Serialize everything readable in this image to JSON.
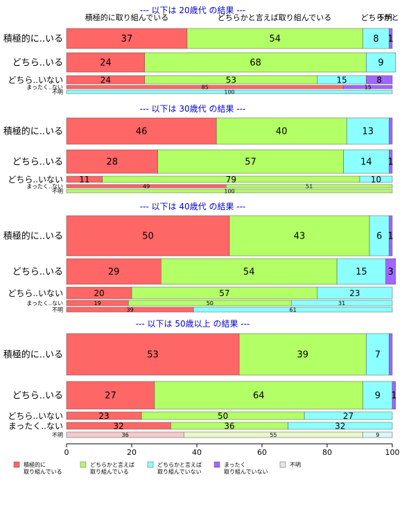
{
  "chart_data": {
    "type": "bar",
    "orientation": "horizontal-stacked-100",
    "xlim": [
      0,
      100
    ],
    "x_ticks": [
      0,
      20,
      40,
      60,
      80,
      100
    ],
    "categories": [
      "積極的に取り組んでいる",
      "どちらかと言えば取り組んでいる",
      "どちらかと言えば取り組んでいない",
      "まったく取り組んでいない",
      "不明"
    ],
    "colors": [
      "#ff6666",
      "#b3ff66",
      "#8cffff",
      "#a066ff",
      "#e6e6e6"
    ],
    "legend": {
      "placement": "bottom",
      "entries": [
        {
          "line1": "積極的に",
          "line2": "取り組んでいる"
        },
        {
          "line1": "どちらかと言えば",
          "line2": "取り組んでいる"
        },
        {
          "line1": "どちらかと言えば",
          "line2": "取り組んでいない"
        },
        {
          "line1": "まったく",
          "line2": "取り組んでいない"
        },
        {
          "line1": "不明",
          "line2": ""
        }
      ]
    },
    "top_header_labels": [
      "積極的に取り組んでいる",
      "どちらかと言えば取り組んでいる",
      "どちらかと",
      "不明"
    ],
    "panels": [
      {
        "title": "--- 以下は 20歳代 の結果 ---",
        "rows": [
          {
            "label": "積極的に..いる",
            "values": [
              37,
              54,
              8,
              1,
              0
            ],
            "labels": [
              "37",
              "54",
              "8",
              "1",
              ""
            ]
          },
          {
            "label": "どちら..いる",
            "values": [
              24,
              68,
              9,
              0,
              0
            ],
            "labels": [
              "24",
              "68",
              "9",
              "",
              ""
            ]
          },
          {
            "label": "どちら..いない",
            "values": [
              24,
              53,
              15,
              8,
              0
            ],
            "labels": [
              "24",
              "53",
              "15",
              "8",
              ""
            ]
          },
          {
            "label": "まったく..ない",
            "values": [
              85,
              0,
              0,
              15,
              0
            ],
            "labels": [
              "85",
              "",
              "",
              "15",
              ""
            ]
          },
          {
            "label": "不明",
            "values": [
              0,
              0,
              100,
              0,
              0
            ],
            "labels": [
              "",
              "",
              "100",
              "",
              ""
            ]
          }
        ]
      },
      {
        "title": "--- 以下は 30歳代 の結果 ---",
        "rows": [
          {
            "label": "積極的に..いる",
            "values": [
              46,
              40,
              13,
              1,
              0
            ],
            "labels": [
              "46",
              "40",
              "13",
              "",
              ""
            ]
          },
          {
            "label": "どちら..いる",
            "values": [
              28,
              57,
              14,
              1,
              0
            ],
            "labels": [
              "28",
              "57",
              "14",
              "1",
              ""
            ]
          },
          {
            "label": "どちら..いない",
            "values": [
              11,
              79,
              10,
              0,
              0
            ],
            "labels": [
              "11",
              "79",
              "10",
              "",
              ""
            ]
          },
          {
            "label": "まったく..ない",
            "values": [
              49,
              51,
              0,
              0,
              0
            ],
            "labels": [
              "49",
              "51",
              "",
              "",
              ""
            ]
          },
          {
            "label": "不明",
            "values": [
              0,
              100,
              0,
              0,
              0
            ],
            "labels": [
              "",
              "100",
              "",
              "",
              ""
            ]
          }
        ]
      },
      {
        "title": "--- 以下は 40歳代 の結果 ---",
        "rows": [
          {
            "label": "積極的に..いる",
            "values": [
              50,
              43,
              6,
              1,
              0
            ],
            "labels": [
              "50",
              "43",
              "6",
              "1",
              ""
            ]
          },
          {
            "label": "どちら..いる",
            "values": [
              29,
              54,
              15,
              3,
              0
            ],
            "labels": [
              "29",
              "54",
              "15",
              "3",
              ""
            ]
          },
          {
            "label": "どちら..いない",
            "values": [
              20,
              57,
              23,
              0,
              0
            ],
            "labels": [
              "20",
              "57",
              "23",
              "",
              ""
            ]
          },
          {
            "label": "まったく..ない",
            "values": [
              19,
              50,
              31,
              0,
              0
            ],
            "labels": [
              "19",
              "50",
              "31",
              "",
              ""
            ]
          },
          {
            "label": "不明",
            "values": [
              39,
              0,
              61,
              0,
              0
            ],
            "labels": [
              "39",
              "",
              "61",
              "",
              ""
            ]
          }
        ]
      },
      {
        "title": "--- 以下は 50歳以上 の結果 ---",
        "rows": [
          {
            "label": "積極的に..いる",
            "values": [
              53,
              39,
              7,
              1,
              0
            ],
            "labels": [
              "53",
              "39",
              "7",
              "",
              ""
            ]
          },
          {
            "label": "どちら..いる",
            "values": [
              27,
              64,
              9,
              1,
              0
            ],
            "labels": [
              "27",
              "64",
              "9",
              "1",
              ""
            ]
          },
          {
            "label": "どちら..いない",
            "values": [
              23,
              50,
              27,
              0,
              0
            ],
            "labels": [
              "23",
              "50",
              "27",
              "",
              ""
            ]
          },
          {
            "label": "まったく..ない",
            "values": [
              32,
              36,
              32,
              0,
              0
            ],
            "labels": [
              "32",
              "36",
              "32",
              "",
              ""
            ]
          },
          {
            "label": "不明",
            "values": [
              36,
              55,
              9,
              0,
              0
            ],
            "labels": [
              "36",
              "55",
              "9",
              "",
              ""
            ],
            "pale": true
          }
        ]
      }
    ]
  }
}
